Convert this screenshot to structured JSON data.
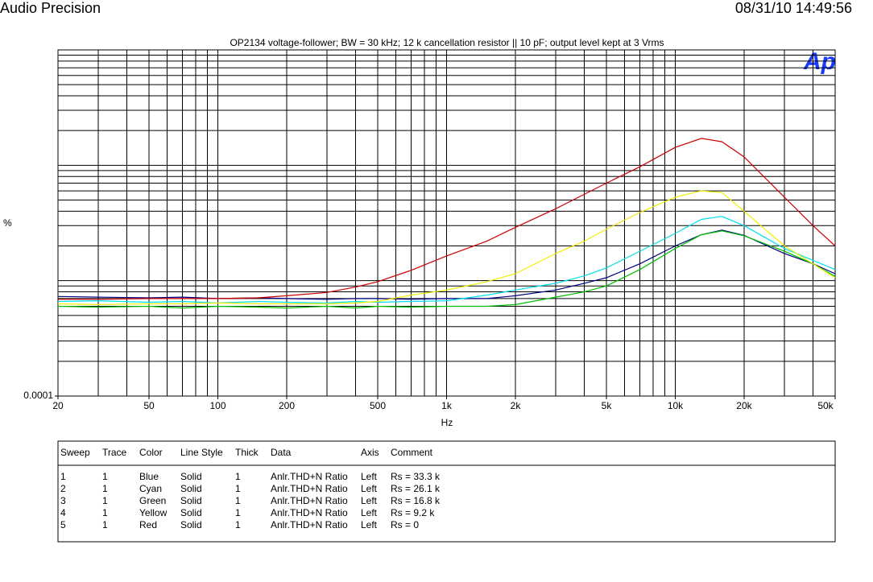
{
  "header": {
    "brand": "Audio Precision",
    "timestamp": "08/31/10 14:49:56",
    "logo": "Ap"
  },
  "chart_data": {
    "type": "line",
    "title": "OP2134 voltage-follower; BW = 30 kHz; 12 k cancellation resistor || 10 pF; output level kept at 3 Vrms",
    "x_label": "Hz",
    "y_label": "%",
    "log_x": true,
    "log_y": true,
    "grid": true,
    "xlim": [
      20,
      50000
    ],
    "ylim": [
      0.0001,
      0.1
    ],
    "xticks": [
      20,
      50,
      100,
      200,
      500,
      {
        "value": 1000,
        "label": "1k"
      },
      {
        "value": 2000,
        "label": "2k"
      },
      {
        "value": 5000,
        "label": "5k"
      },
      {
        "value": 10000,
        "label": "10k"
      },
      {
        "value": 20000,
        "label": "20k"
      },
      {
        "value": 50000,
        "label": "50k"
      }
    ],
    "yticks": [
      0.0001
    ],
    "xgrid": [
      20,
      30,
      40,
      50,
      60,
      70,
      80,
      90,
      100,
      200,
      300,
      400,
      500,
      600,
      700,
      800,
      900,
      1000,
      2000,
      3000,
      4000,
      5000,
      6000,
      7000,
      8000,
      9000,
      10000,
      20000,
      30000,
      40000,
      50000
    ],
    "ygrid": [
      0.0002,
      0.0003,
      0.0004,
      0.0005,
      0.0006,
      0.0007,
      0.0008,
      0.0009,
      0.001,
      0.002,
      0.003,
      0.004,
      0.005,
      0.006,
      0.007,
      0.008,
      0.009,
      0.01,
      0.02,
      0.03,
      0.04,
      0.05,
      0.06,
      0.07,
      0.08,
      0.09,
      0.1
    ],
    "x": [
      20,
      30,
      50,
      70,
      100,
      150,
      200,
      300,
      400,
      500,
      700,
      1000,
      1500,
      2000,
      3000,
      4000,
      5000,
      7000,
      10000,
      13000,
      16000,
      20000,
      30000,
      40000,
      50000
    ],
    "series": [
      {
        "color": "#000080",
        "values": [
          0.00073,
          0.00072,
          0.00071,
          0.00072,
          0.0007,
          0.00071,
          0.0007,
          0.00069,
          0.0007,
          0.0007,
          0.00069,
          0.0007,
          0.0007,
          0.00074,
          0.00083,
          0.00095,
          0.00106,
          0.0014,
          0.002,
          0.0025,
          0.00274,
          0.00247,
          0.00172,
          0.0014,
          0.00115
        ]
      },
      {
        "color": "#00e0f0",
        "values": [
          0.00066,
          0.00067,
          0.00065,
          0.00066,
          0.00064,
          0.00066,
          0.00065,
          0.00064,
          0.00066,
          0.00065,
          0.00066,
          0.00067,
          0.00075,
          0.00083,
          0.00095,
          0.0011,
          0.00129,
          0.0018,
          0.00257,
          0.0034,
          0.0036,
          0.003,
          0.0019,
          0.0015,
          0.00125
        ]
      },
      {
        "color": "#00c000",
        "values": [
          0.0006,
          0.00059,
          0.0006,
          0.00058,
          0.0006,
          0.00059,
          0.00058,
          0.0006,
          0.00058,
          0.0006,
          0.00059,
          0.0006,
          0.0006,
          0.00062,
          0.00072,
          0.0008,
          0.0009,
          0.00125,
          0.0019,
          0.0025,
          0.0027,
          0.00245,
          0.0018,
          0.0014,
          0.00109
        ]
      },
      {
        "color": "#f0f000",
        "values": [
          0.00063,
          0.00062,
          0.00063,
          0.00063,
          0.00064,
          0.00063,
          0.00063,
          0.00063,
          0.00064,
          0.00066,
          0.00075,
          0.00083,
          0.00098,
          0.00115,
          0.00172,
          0.0022,
          0.0028,
          0.0039,
          0.0053,
          0.006,
          0.0058,
          0.004,
          0.002,
          0.0014,
          0.00106
        ]
      },
      {
        "color": "#cc0000",
        "values": [
          0.00069,
          0.00069,
          0.0007,
          0.0007,
          0.0007,
          0.00071,
          0.00074,
          0.00079,
          0.00088,
          0.00098,
          0.00123,
          0.00164,
          0.0022,
          0.0029,
          0.0042,
          0.0056,
          0.007,
          0.0097,
          0.0143,
          0.0171,
          0.016,
          0.0118,
          0.0053,
          0.003,
          0.002
        ]
      }
    ]
  },
  "legend_table": {
    "headers": [
      "Sweep",
      "Trace",
      "Color",
      "Line Style",
      "Thick",
      "Data",
      "Axis",
      "Comment"
    ],
    "rows": [
      [
        "1",
        "1",
        "Blue",
        "Solid",
        "1",
        "Anlr.THD+N Ratio",
        "Left",
        "Rs = 33.3 k"
      ],
      [
        "2",
        "1",
        "Cyan",
        "Solid",
        "1",
        "Anlr.THD+N Ratio",
        "Left",
        "Rs = 26.1 k"
      ],
      [
        "3",
        "1",
        "Green",
        "Solid",
        "1",
        "Anlr.THD+N Ratio",
        "Left",
        "Rs = 16.8 k"
      ],
      [
        "4",
        "1",
        "Yellow",
        "Solid",
        "1",
        "Anlr.THD+N Ratio",
        "Left",
        "Rs = 9.2 k"
      ],
      [
        "5",
        "1",
        "Red",
        "Solid",
        "1",
        "Anlr.THD+N Ratio",
        "Left",
        "Rs = 0"
      ]
    ]
  }
}
